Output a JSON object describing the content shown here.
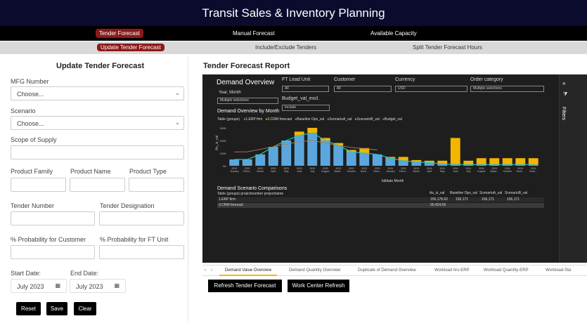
{
  "app_title": "Transit Sales & Inventory Planning",
  "nav_primary": [
    "Tender Forecast",
    "Manual Forecast",
    "Available Capacity"
  ],
  "nav_secondary": [
    "Update Tender Forecast",
    "Include/Exclude Tenders",
    "Split Tender Forecast Hours"
  ],
  "form": {
    "title": "Update Tender Forecast",
    "mfg_label": "MFG Number",
    "mfg_value": "Choose...",
    "scenario_label": "Scenario",
    "scenario_value": "Choose...",
    "scope_label": "Scope of Supply",
    "product_family_label": "Product Family",
    "product_name_label": "Product Name",
    "product_type_label": "Product Type",
    "tender_number_label": "Tender Number",
    "tender_designation_label": "Tender Designation",
    "prob_customer_label": "% Probability for Customer",
    "prob_ft_label": "% Probability for FT Unit",
    "start_label": "Start Date:",
    "end_label": "End Date:",
    "start_value": "July 2023",
    "end_value": "July 2023",
    "reset": "Reset",
    "save": "Save",
    "clear": "Clear"
  },
  "report": {
    "title": "Tender Forecast Report",
    "demand_overview": "Demand Overview",
    "year_month_label": "Year, Month",
    "year_month_value": "Multiple selections",
    "ft_lead_label": "FT Lead Unit",
    "ft_lead_value": "All",
    "customer_label": "Customer",
    "customer_value": "All",
    "currency_label": "Currency",
    "currency_value": "USD",
    "order_cat_label": "Order category",
    "order_cat_value": "Multiple selections",
    "budget_label": "Budget_val_excl.",
    "budget_value": "Include",
    "chart_title": "Demand Overview by Month",
    "legend_prefix": "Table (groups)",
    "legend": [
      "1.ERP firm",
      "3.CRM forecast",
      "Baseline Ops_val",
      "ScenarioA_val",
      "ScenarioB_val",
      "Budget_val"
    ],
    "y_axis_label": "As_is_val",
    "x_axis_label": "fulldate Month",
    "y_ticks": [
      "300K",
      "200K",
      "100K",
      "0K"
    ],
    "comparisons_title": "Demand Scenario Comparisons",
    "table_head_left": "Table (groups) projectnumber projectname",
    "table_cols": [
      "As_is_val",
      "Baseline Ops_val",
      "ScenarioA_val",
      "ScenarioB_val"
    ],
    "table_rows": [
      {
        "name": "1.ERP firm",
        "vals": [
          "156,178.62",
          "156,171",
          "156,171",
          "156,171"
        ]
      },
      {
        "name": "3.CRM forecast",
        "vals": [
          "90,424.56",
          "",
          "",
          ""
        ]
      }
    ],
    "filters": "Filters"
  },
  "chart_data": {
    "type": "bar",
    "categories": [
      "2023 January",
      "2023 Febru...",
      "2023 March",
      "2023 April",
      "2023 May",
      "2023 June",
      "2023 July",
      "2023 August",
      "2023 Septe...",
      "2023 October",
      "2023 Nove...",
      "2023 Dece...",
      "2024 January",
      "2024 Febru...",
      "2024 March",
      "2024 April",
      "2024 May",
      "2024 June",
      "2024 July",
      "2024 August",
      "2024 Septe...",
      "2024 October",
      "2024 Nove...",
      "2024 Dece..."
    ],
    "series": [
      {
        "name": "1.ERP firm",
        "color": "#5ba7dd",
        "values": [
          50,
          50,
          90,
          150,
          200,
          240,
          260,
          200,
          160,
          110,
          100,
          90,
          60,
          40,
          30,
          25,
          15,
          10,
          10,
          10,
          10,
          10,
          10,
          10
        ]
      },
      {
        "name": "3.CRM forecast",
        "color": "#f5b400",
        "values": [
          0,
          0,
          0,
          0,
          0,
          30,
          40,
          20,
          20,
          15,
          40,
          0,
          10,
          30,
          15,
          15,
          25,
          210,
          30,
          50,
          50,
          50,
          50,
          50
        ]
      },
      {
        "name": "Baseline Ops_val",
        "color": "#2ec4b6",
        "values": [
          50,
          50,
          90,
          150,
          200,
          240,
          260,
          200,
          160,
          110,
          100,
          90,
          60,
          40,
          30,
          25,
          15,
          10,
          10,
          10,
          10,
          10,
          10,
          10
        ]
      },
      {
        "name": "Budget_val",
        "color": "#b08050",
        "values": [
          110,
          110,
          130,
          150,
          170,
          190,
          200,
          180,
          160,
          145,
          135,
          125,
          null,
          null,
          null,
          null,
          null,
          null,
          null,
          null,
          null,
          null,
          null,
          null
        ]
      }
    ],
    "ylim": [
      0,
      300
    ],
    "ylabel": "As_is_val",
    "xlabel": "fulldate Month"
  },
  "tabs": [
    "Demand Value Overview",
    "Demand Quantity Overview",
    "Duplicate of Demand Overview",
    "Workload hrs-ERP",
    "Workload Quantity-ERP",
    "Workload-Sta"
  ],
  "actions": [
    "Refresh Tender Forecast",
    "Work Center Refresh"
  ]
}
